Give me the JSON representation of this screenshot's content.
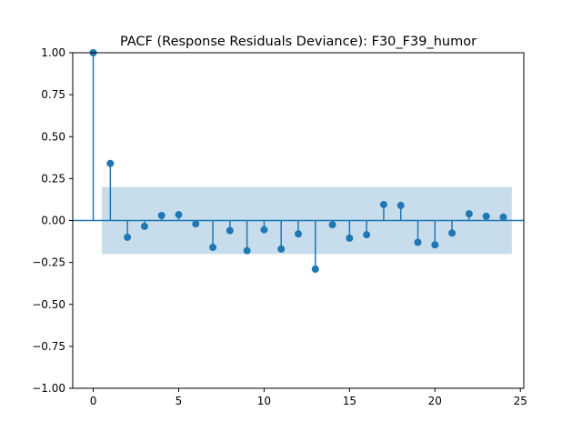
{
  "chart_data": {
    "type": "stem",
    "title": "PACF (Response Residuals Deviance): F30_F39_humor",
    "xlabel": "",
    "ylabel": "",
    "xlim": [
      -1.2,
      25.2
    ],
    "ylim": [
      -1.0,
      1.0
    ],
    "xticks": [
      0,
      5,
      10,
      15,
      20,
      25
    ],
    "yticks": [
      -1.0,
      -0.75,
      -0.5,
      -0.25,
      0.0,
      0.25,
      0.5,
      0.75,
      1.0
    ],
    "xtick_labels": [
      "0",
      "5",
      "10",
      "15",
      "20",
      "25"
    ],
    "ytick_labels": [
      "−1.00",
      "−0.75",
      "−0.50",
      "−0.25",
      "0.00",
      "0.25",
      "0.50",
      "0.75",
      "1.00"
    ],
    "grid": false,
    "series": [
      {
        "lags": [
          0,
          1,
          2,
          3,
          4,
          5,
          6,
          7,
          8,
          9,
          10,
          11,
          12,
          13,
          14,
          15,
          16,
          17,
          18,
          19,
          20,
          21,
          22,
          23,
          24
        ],
        "values": [
          1.0,
          0.34,
          -0.1,
          -0.035,
          0.03,
          0.035,
          -0.02,
          -0.16,
          -0.06,
          -0.18,
          -0.055,
          -0.17,
          -0.08,
          -0.29,
          -0.025,
          -0.105,
          -0.085,
          0.095,
          0.09,
          -0.13,
          -0.145,
          -0.075,
          0.04,
          0.025,
          0.02
        ]
      }
    ],
    "confidence_band": {
      "x_range": [
        0.5,
        24.5
      ],
      "upper": 0.2,
      "lower": -0.2
    },
    "colors": {
      "stem": "#1f77b4",
      "band": "#1f77b4",
      "baseline": "#1f77b4"
    }
  }
}
